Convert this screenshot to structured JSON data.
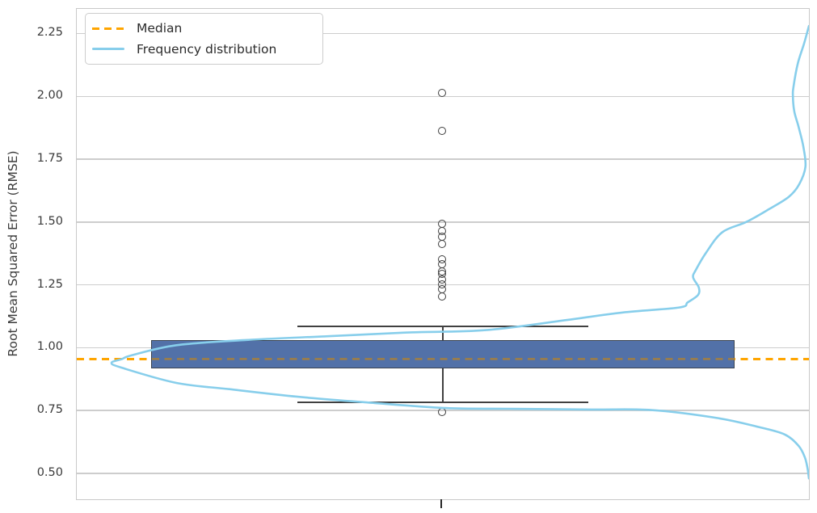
{
  "figure": {
    "ylabel": "Root Mean Squared Error (RMSE)",
    "legend": [
      {
        "label": "Median",
        "color": "#FFA500",
        "style": "dashed"
      },
      {
        "label": "Frequency distribution",
        "color": "#87CEEB",
        "style": "solid"
      }
    ],
    "background": "#FFFFFF"
  },
  "chart_data": {
    "type": "boxplot_with_kde",
    "title": "",
    "xlabel": "",
    "ylabel": "Root Mean Squared Error (RMSE)",
    "grid": true,
    "legend_position": "upper-left",
    "ylim": [
      0.397,
      2.348
    ],
    "yticks": [
      0.5,
      0.75,
      1.0,
      1.25,
      1.5,
      1.75,
      2.0,
      2.25
    ],
    "ytick_labels": [
      "0.50",
      "0.75",
      "1.00",
      "1.25",
      "1.50",
      "1.75",
      "2.00",
      "2.25"
    ],
    "box": {
      "q1": 0.918,
      "median": 0.955,
      "q3": 1.03,
      "whisker_low": 0.782,
      "whisker_high": 1.085
    },
    "median_reference_line": 0.955,
    "outliers": [
      2.01,
      1.86,
      1.49,
      1.46,
      1.44,
      1.41,
      1.35,
      1.33,
      1.3,
      1.29,
      1.27,
      1.25,
      1.23,
      1.2,
      0.74
    ],
    "kde_curve": {
      "baseline": "right-spine",
      "mode_value": 0.94,
      "points": [
        [
          2.28,
          0.0
        ],
        [
          2.21,
          0.007
        ],
        [
          2.13,
          0.016
        ],
        [
          2.04,
          0.022
        ],
        [
          2.0,
          0.023
        ],
        [
          1.94,
          0.021
        ],
        [
          1.88,
          0.015
        ],
        [
          1.8,
          0.008
        ],
        [
          1.72,
          0.005
        ],
        [
          1.65,
          0.014
        ],
        [
          1.6,
          0.029
        ],
        [
          1.55,
          0.058
        ],
        [
          1.5,
          0.09
        ],
        [
          1.46,
          0.124
        ],
        [
          1.38,
          0.147
        ],
        [
          1.31,
          0.162
        ],
        [
          1.28,
          0.166
        ],
        [
          1.24,
          0.158
        ],
        [
          1.21,
          0.159
        ],
        [
          1.18,
          0.174
        ],
        [
          1.16,
          0.186
        ],
        [
          1.14,
          0.267
        ],
        [
          1.11,
          0.348
        ],
        [
          1.07,
          0.463
        ],
        [
          1.06,
          0.579
        ],
        [
          1.045,
          0.695
        ],
        [
          1.03,
          0.811
        ],
        [
          1.01,
          0.907
        ],
        [
          0.97,
          0.971
        ],
        [
          0.955,
          0.985
        ],
        [
          0.94,
          1.0
        ],
        [
          0.92,
          0.985
        ],
        [
          0.86,
          0.907
        ],
        [
          0.835,
          0.831
        ],
        [
          0.805,
          0.733
        ],
        [
          0.783,
          0.637
        ],
        [
          0.76,
          0.521
        ],
        [
          0.757,
          0.429
        ],
        [
          0.754,
          0.313
        ],
        [
          0.752,
          0.226
        ],
        [
          0.72,
          0.131
        ],
        [
          0.685,
          0.073
        ],
        [
          0.655,
          0.035
        ],
        [
          0.61,
          0.015
        ],
        [
          0.565,
          0.006
        ],
        [
          0.52,
          0.002
        ],
        [
          0.48,
          0.0
        ]
      ]
    },
    "colors": {
      "box_fill": "#5271A8",
      "box_edge": "#3A4350",
      "whisker": "#404040",
      "flier_edge": "#3d3d3d",
      "median_line": "#FFA500",
      "median_line_over_box": "#A07E44",
      "kde_line": "#87CEEB",
      "grid_line": "#cdcdcd",
      "tick_text": "#3a3a3a"
    },
    "layout": {
      "center_frac": 0.5,
      "box_width_frac": 0.797,
      "cap_width_frac": 0.398,
      "kde_max_dev_frac": 0.9525
    }
  }
}
